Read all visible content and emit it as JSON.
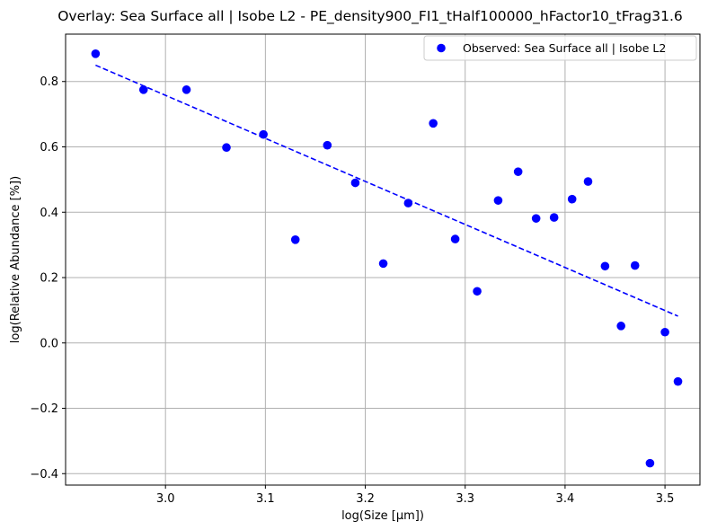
{
  "chart_data": {
    "type": "scatter",
    "title": "Overlay: Sea Surface all | Isobe L2 - PE_density900_FI1_tHalf100000_hFactor10_tFrag31.6",
    "xlabel": "log(Size [μm])",
    "ylabel": "log(Relative Abundance [%])",
    "xlim": [
      2.9,
      3.535
    ],
    "ylim": [
      -0.435,
      0.945
    ],
    "x_ticks": [
      3.0,
      3.1,
      3.2,
      3.3,
      3.4,
      3.5
    ],
    "x_tick_labels": [
      "3.0",
      "3.1",
      "3.2",
      "3.3",
      "3.4",
      "3.5"
    ],
    "y_ticks": [
      -0.4,
      -0.2,
      0.0,
      0.2,
      0.4,
      0.6,
      0.8
    ],
    "y_tick_labels": [
      "−0.4",
      "−0.2",
      "0.0",
      "0.2",
      "0.4",
      "0.6",
      "0.8"
    ],
    "grid": true,
    "legend_position": "top-right",
    "series": [
      {
        "name": "Observed: Sea Surface all | Isobe L2",
        "kind": "scatter",
        "color": "#0000ff",
        "points": [
          [
            2.93,
            0.885
          ],
          [
            2.978,
            0.775
          ],
          [
            3.021,
            0.775
          ],
          [
            3.061,
            0.598
          ],
          [
            3.098,
            0.638
          ],
          [
            3.13,
            0.316
          ],
          [
            3.162,
            0.605
          ],
          [
            3.19,
            0.49
          ],
          [
            3.218,
            0.243
          ],
          [
            3.243,
            0.428
          ],
          [
            3.268,
            0.672
          ],
          [
            3.29,
            0.318
          ],
          [
            3.312,
            0.158
          ],
          [
            3.333,
            0.436
          ],
          [
            3.353,
            0.524
          ],
          [
            3.371,
            0.381
          ],
          [
            3.389,
            0.384
          ],
          [
            3.407,
            0.44
          ],
          [
            3.423,
            0.494
          ],
          [
            3.44,
            0.235
          ],
          [
            3.456,
            0.052
          ],
          [
            3.47,
            0.237
          ],
          [
            3.485,
            -0.368
          ],
          [
            3.5,
            0.033
          ],
          [
            3.513,
            -0.118
          ]
        ]
      },
      {
        "kind": "fit-line",
        "color": "#0000ff",
        "style": "dashed",
        "points": [
          [
            2.93,
            0.85
          ],
          [
            3.513,
            0.082
          ]
        ]
      }
    ]
  }
}
